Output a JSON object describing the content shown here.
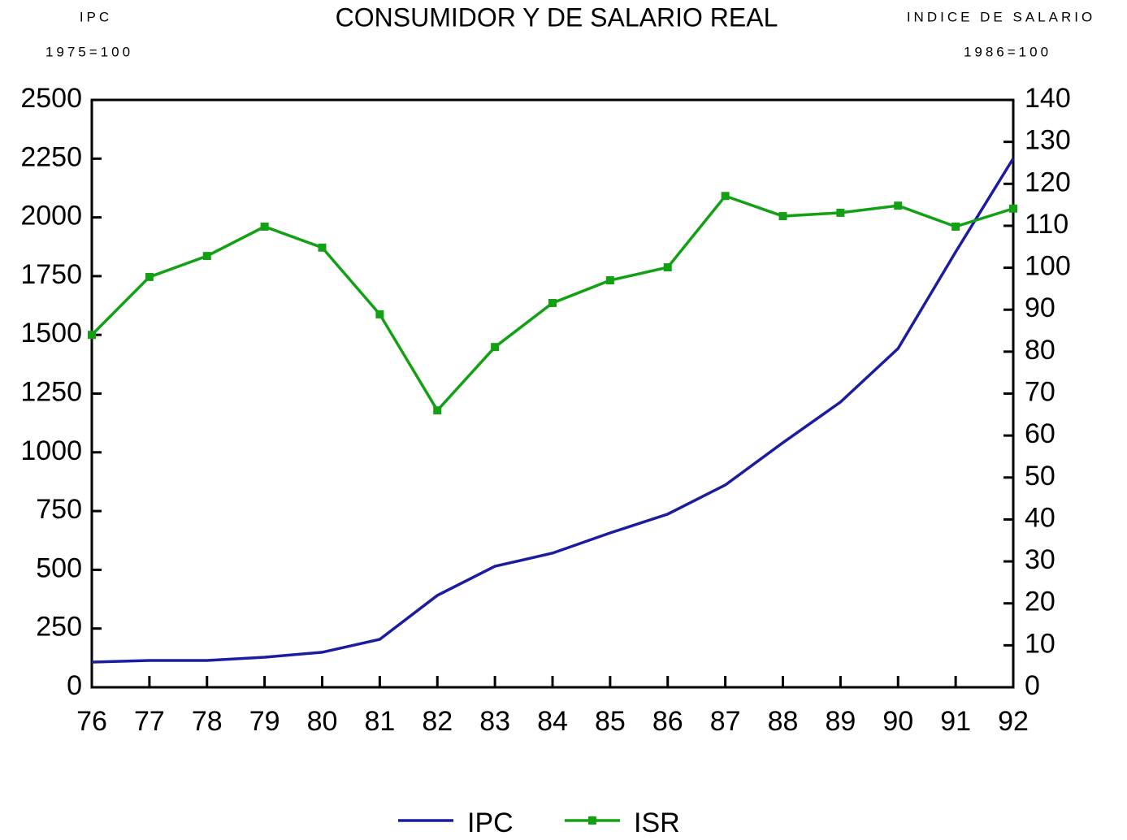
{
  "chart_data": {
    "type": "line",
    "title": "CONSUMIDOR Y DE SALARIO REAL",
    "ylabel": "IPC",
    "ylabel_note": "1975=100",
    "y2label": "INDICE DE SALARIO",
    "y2label_note": "1986=100",
    "categories": [
      "76",
      "77",
      "78",
      "79",
      "80",
      "81",
      "82",
      "83",
      "84",
      "85",
      "86",
      "87",
      "88",
      "89",
      "90",
      "91",
      "92"
    ],
    "series": [
      {
        "name": "IPC",
        "color": "#1c1ca0",
        "marker": false,
        "values": [
          107,
          114,
          114,
          128,
          149,
          204,
          391,
          515,
          571,
          657,
          737,
          861,
          1041,
          1214,
          1442,
          1853,
          2251
        ]
      },
      {
        "name": "ISR",
        "color": "#14a014",
        "marker": true,
        "axis": "y2",
        "values": [
          84.0,
          97.8,
          102.8,
          109.8,
          104.8,
          88.9,
          66.0,
          81.1,
          91.6,
          97.0,
          100.1,
          117.1,
          112.3,
          113.1,
          114.8,
          109.8,
          114.1
        ]
      }
    ],
    "ylim": [
      0,
      2500
    ],
    "yticks": [
      0,
      250,
      500,
      750,
      1000,
      1250,
      1500,
      1750,
      2000,
      2250,
      2500
    ],
    "y2lim": [
      0,
      140
    ],
    "y2ticks": [
      0,
      10,
      20,
      30,
      40,
      50,
      60,
      70,
      80,
      90,
      100,
      110,
      120,
      130,
      140
    ],
    "grid": false,
    "legend": "bottom"
  }
}
